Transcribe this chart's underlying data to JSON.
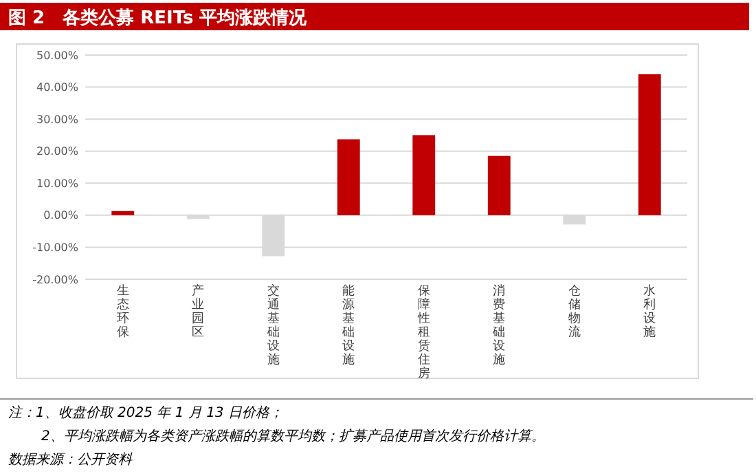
{
  "chart_data": {
    "type": "bar",
    "title": "图 2　各类公募 REITs 平均涨跌情况",
    "categories": [
      "生态环保",
      "产业园区",
      "交通基础设施",
      "能源基础设施",
      "保障性租赁住房",
      "消费基础设施",
      "仓储物流",
      "水利设施"
    ],
    "values": [
      1.3,
      -1.2,
      -12.8,
      23.7,
      25.0,
      18.5,
      -2.9,
      44.0
    ],
    "colors": [
      "#c00000",
      "#d9d9d9",
      "#d9d9d9",
      "#c00000",
      "#c00000",
      "#c00000",
      "#d9d9d9",
      "#c00000"
    ],
    "ylim": [
      -20,
      50
    ],
    "yticks": [
      {
        "value": -20,
        "label": "-20.00%"
      },
      {
        "value": -10,
        "label": "-10.00%"
      },
      {
        "value": 0,
        "label": "0.00%"
      },
      {
        "value": 10,
        "label": "10.00%"
      },
      {
        "value": 20,
        "label": "20.00%"
      },
      {
        "value": 30,
        "label": "30.00%"
      },
      {
        "value": 40,
        "label": "40.00%"
      },
      {
        "value": 50,
        "label": "50.00%"
      }
    ],
    "grid": "y",
    "annotations": [
      "注：1、收盘价取 2025 年 1 月 13 日价格；",
      "2、平均涨跌幅为各类资产涨跌幅的算数平均数；扩募产品使用首次发行价格计算。",
      "数据来源：公开资料"
    ]
  }
}
